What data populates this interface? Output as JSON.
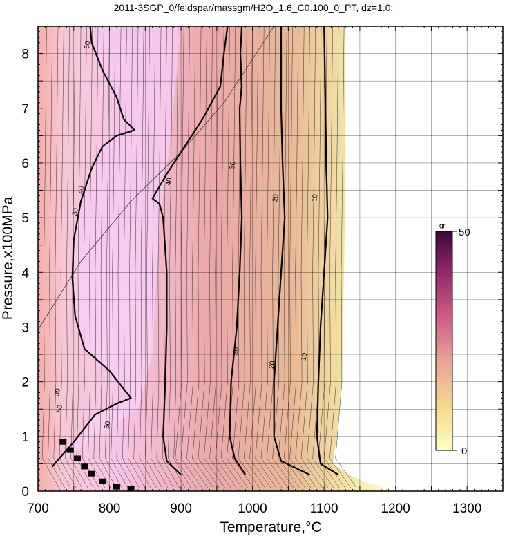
{
  "chart_data": {
    "type": "heatmap",
    "title": "2011-3SGP_0/feldspar/massgm/H2O_1.6_C0.100_0_PT, dz=1.0:",
    "xlabel": "Temperature,°C",
    "ylabel": "Pressure,x100MPa",
    "xlim": [
      700,
      1350
    ],
    "ylim": [
      0,
      8.5
    ],
    "xticks": [
      "700",
      "800",
      "900",
      "1000",
      "1100",
      "1200",
      "1300"
    ],
    "yticks": [
      "0",
      "1",
      "2",
      "3",
      "4",
      "5",
      "6",
      "7",
      "8"
    ],
    "grid": true,
    "colorbar": {
      "unit": "gr",
      "min": 0,
      "max": 50,
      "min_label": "0",
      "max_label": "50",
      "colors": [
        "#ffffc0",
        "#f5d890",
        "#e8a898",
        "#d06088",
        "#902868",
        "#3a0840"
      ]
    },
    "contour_labels": [
      {
        "text": "10",
        "x": 1090,
        "y": 5.35
      },
      {
        "text": "20",
        "x": 1035,
        "y": 5.35
      },
      {
        "text": "30",
        "x": 975,
        "y": 5.95
      },
      {
        "text": "40",
        "x": 763,
        "y": 5.5
      },
      {
        "text": "40",
        "x": 886,
        "y": 5.65
      },
      {
        "text": "30",
        "x": 755,
        "y": 5.1
      },
      {
        "text": "30",
        "x": 980,
        "y": 2.55
      },
      {
        "text": "20",
        "x": 1030,
        "y": 2.3
      },
      {
        "text": "10",
        "x": 1075,
        "y": 2.45
      },
      {
        "text": "30",
        "x": 730,
        "y": 1.8
      },
      {
        "text": "50",
        "x": 733,
        "y": 1.5
      },
      {
        "text": "50",
        "x": 800,
        "y": 1.2
      },
      {
        "text": "50",
        "x": 772,
        "y": 8.15
      }
    ],
    "bold_contours": [
      {
        "level": 10,
        "points": [
          [
            1120,
            0.3
          ],
          [
            1095,
            0.5
          ],
          [
            1090,
            1.0
          ],
          [
            1092,
            2.0
          ],
          [
            1095,
            3.0
          ],
          [
            1100,
            4.0
          ],
          [
            1105,
            5.0
          ],
          [
            1103,
            6.0
          ],
          [
            1102,
            7.0
          ],
          [
            1100,
            8.5
          ]
        ]
      },
      {
        "level": 20,
        "points": [
          [
            1080,
            0.3
          ],
          [
            1040,
            0.55
          ],
          [
            1030,
            1.0
          ],
          [
            1030,
            2.0
          ],
          [
            1035,
            3.0
          ],
          [
            1040,
            4.0
          ],
          [
            1045,
            5.0
          ],
          [
            1042,
            6.0
          ],
          [
            1040,
            7.0
          ],
          [
            1040,
            8.5
          ]
        ]
      },
      {
        "level": 30,
        "points": [
          [
            990,
            0.3
          ],
          [
            975,
            0.6
          ],
          [
            968,
            1.0
          ],
          [
            970,
            2.0
          ],
          [
            978,
            3.0
          ],
          [
            982,
            4.0
          ],
          [
            985,
            5.0
          ],
          [
            983,
            6.0
          ],
          [
            982,
            7.0
          ],
          [
            985,
            7.4
          ],
          [
            983,
            8.0
          ],
          [
            985,
            8.5
          ]
        ]
      },
      {
        "level": 40,
        "points": [
          [
            900,
            0.3
          ],
          [
            880,
            0.55
          ],
          [
            875,
            1.0
          ],
          [
            878,
            2.0
          ],
          [
            880,
            3.0
          ],
          [
            880,
            4.0
          ],
          [
            875,
            5.0
          ],
          [
            870,
            5.25
          ],
          [
            860,
            5.35
          ],
          [
            880,
            5.8
          ],
          [
            905,
            6.3
          ],
          [
            930,
            6.8
          ],
          [
            955,
            7.4
          ],
          [
            960,
            8.0
          ],
          [
            965,
            8.5
          ]
        ]
      },
      {
        "level": 50,
        "points": [
          [
            720,
            0.45
          ],
          [
            750,
            0.9
          ],
          [
            780,
            1.4
          ],
          [
            810,
            1.6
          ],
          [
            830,
            1.7
          ],
          [
            800,
            2.2
          ],
          [
            765,
            2.6
          ],
          [
            752,
            3.2
          ],
          [
            748,
            3.9
          ],
          [
            750,
            4.6
          ],
          [
            760,
            5.3
          ],
          [
            775,
            5.9
          ],
          [
            790,
            6.3
          ],
          [
            810,
            6.5
          ],
          [
            835,
            6.6
          ],
          [
            820,
            6.8
          ],
          [
            810,
            7.2
          ],
          [
            790,
            7.7
          ],
          [
            775,
            8.2
          ],
          [
            773,
            8.5
          ]
        ]
      }
    ]
  }
}
